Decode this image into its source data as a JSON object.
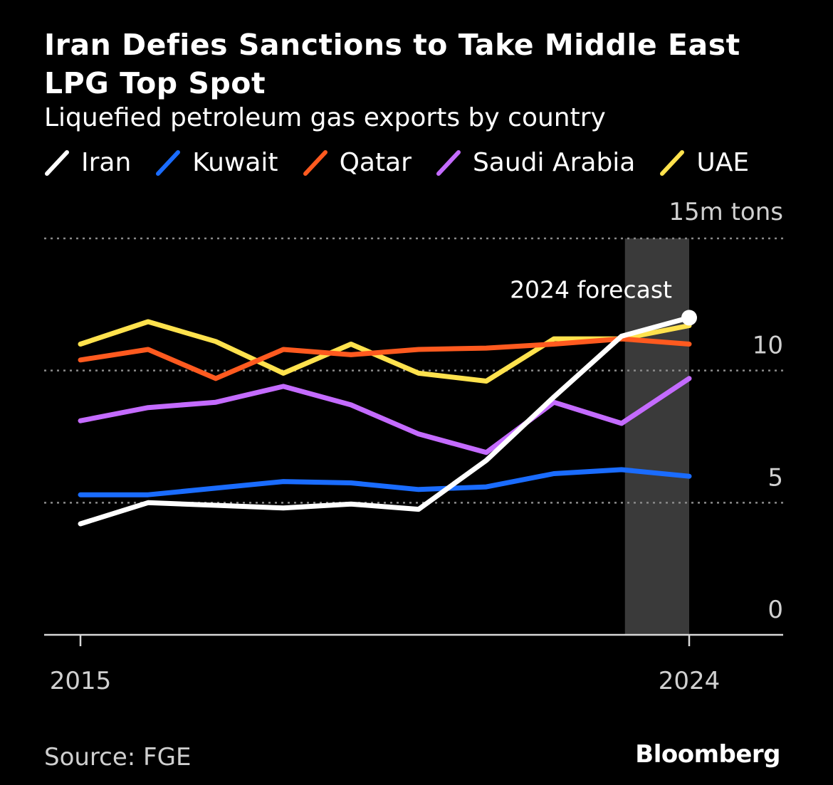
{
  "chart_data": {
    "type": "line",
    "title": "Iran Defies Sanctions to Take Middle East LPG Top Spot",
    "subtitle": "Liquefied petroleum gas exports by country",
    "unit_label": "15m tons",
    "x": [
      2015,
      2016,
      2017,
      2018,
      2019,
      2020,
      2021,
      2022,
      2023,
      2024
    ],
    "x_tick_labels": [
      "2015",
      "2024"
    ],
    "xlim": [
      2015,
      2024
    ],
    "ylim": [
      0,
      15
    ],
    "y_ticks": [
      0,
      5,
      10,
      15
    ],
    "y_tick_labels": [
      "0",
      "5",
      "10",
      "15m tons"
    ],
    "grid": "horizontal dotted",
    "legend_position": "top",
    "shaded_region": {
      "from": 2023.05,
      "to": 2024,
      "label": "2024 forecast",
      "color": "#3a3a3a"
    },
    "series": [
      {
        "name": "Iran",
        "color": "#ffffff",
        "values": [
          4.2,
          5.0,
          4.9,
          4.8,
          4.95,
          4.75,
          6.6,
          9.0,
          11.3,
          12.0
        ]
      },
      {
        "name": "Kuwait",
        "color": "#1a6cff",
        "values": [
          5.3,
          5.3,
          5.55,
          5.8,
          5.75,
          5.5,
          5.6,
          6.1,
          6.25,
          6.0
        ]
      },
      {
        "name": "Qatar",
        "color": "#ff5a1f",
        "values": [
          10.4,
          10.8,
          9.7,
          10.8,
          10.6,
          10.8,
          10.85,
          11.0,
          11.2,
          11.0
        ]
      },
      {
        "name": "Saudi Arabia",
        "color": "#c46bff",
        "values": [
          8.1,
          8.6,
          8.8,
          9.4,
          8.7,
          7.6,
          6.9,
          8.8,
          8.0,
          9.7
        ]
      },
      {
        "name": "UAE",
        "color": "#ffe24d",
        "values": [
          11.0,
          11.85,
          11.1,
          9.9,
          11.0,
          9.9,
          9.6,
          11.2,
          11.2,
          11.7
        ]
      }
    ]
  },
  "source": "Source: FGE",
  "brand": "Bloomberg"
}
